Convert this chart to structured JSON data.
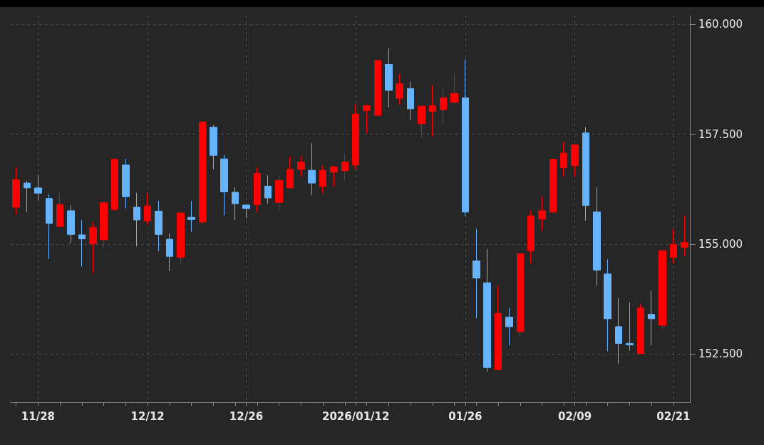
{
  "chart_data": {
    "type": "candlestick",
    "categories": [
      null,
      null,
      "11/28",
      null,
      null,
      null,
      null,
      null,
      null,
      null,
      null,
      null,
      "12/12",
      null,
      null,
      null,
      null,
      null,
      null,
      null,
      null,
      "12/26",
      null,
      null,
      null,
      null,
      null,
      null,
      null,
      null,
      null,
      "2026/01/12",
      null,
      null,
      null,
      null,
      null,
      null,
      null,
      null,
      null,
      "01/26",
      null,
      null,
      null,
      null,
      null,
      null,
      null,
      null,
      null,
      "02/09",
      null,
      null,
      null,
      null,
      null,
      null,
      null,
      null,
      "02/21",
      null
    ],
    "ohlc": [
      [
        155.84,
        156.75,
        155.68,
        156.47
      ],
      [
        156.39,
        156.44,
        155.73,
        156.28
      ],
      [
        156.28,
        156.58,
        155.98,
        156.16
      ],
      [
        156.04,
        156.14,
        154.66,
        155.47
      ],
      [
        155.4,
        156.17,
        155.4,
        155.9
      ],
      [
        155.76,
        155.88,
        155.02,
        155.22
      ],
      [
        155.21,
        155.55,
        154.49,
        155.12
      ],
      [
        155.01,
        155.5,
        154.34,
        155.38
      ],
      [
        155.1,
        155.98,
        154.91,
        155.94
      ],
      [
        155.79,
        156.94,
        155.76,
        156.93
      ],
      [
        156.8,
        156.94,
        155.81,
        156.08
      ],
      [
        155.84,
        156.17,
        154.95,
        155.55
      ],
      [
        155.53,
        156.16,
        155.44,
        155.87
      ],
      [
        155.75,
        155.99,
        154.84,
        155.22
      ],
      [
        155.11,
        155.24,
        154.39,
        154.72
      ],
      [
        154.7,
        155.73,
        154.52,
        155.71
      ],
      [
        155.61,
        155.98,
        155.28,
        155.56
      ],
      [
        155.5,
        157.79,
        155.43,
        157.78
      ],
      [
        157.66,
        157.71,
        156.7,
        157.02
      ],
      [
        156.94,
        157.03,
        155.65,
        156.19
      ],
      [
        156.18,
        156.3,
        155.55,
        155.92
      ],
      [
        155.89,
        155.9,
        155.59,
        155.81
      ],
      [
        155.9,
        156.75,
        155.73,
        156.61
      ],
      [
        156.32,
        156.57,
        155.92,
        156.05
      ],
      [
        155.95,
        156.56,
        155.75,
        156.45
      ],
      [
        156.28,
        157.0,
        156.28,
        156.7
      ],
      [
        156.7,
        157.0,
        156.53,
        156.87
      ],
      [
        156.68,
        157.3,
        156.12,
        156.39
      ],
      [
        156.31,
        156.8,
        156.16,
        156.68
      ],
      [
        156.64,
        156.78,
        156.31,
        156.76
      ],
      [
        156.67,
        157.07,
        156.46,
        156.87
      ],
      [
        156.8,
        158.18,
        156.7,
        157.96
      ],
      [
        158.04,
        158.18,
        157.52,
        158.15
      ],
      [
        157.93,
        159.18,
        157.93,
        159.18
      ],
      [
        159.09,
        159.46,
        158.11,
        158.5
      ],
      [
        158.32,
        158.87,
        158.18,
        158.65
      ],
      [
        158.54,
        158.7,
        157.82,
        158.08
      ],
      [
        157.74,
        158.14,
        157.42,
        158.14
      ],
      [
        158.02,
        158.61,
        157.45,
        158.15
      ],
      [
        158.06,
        158.54,
        157.74,
        158.33
      ],
      [
        158.23,
        158.89,
        158.18,
        158.43
      ],
      [
        158.33,
        159.21,
        155.64,
        155.73
      ],
      [
        154.62,
        155.35,
        153.31,
        154.23
      ],
      [
        154.12,
        154.89,
        152.1,
        152.19
      ],
      [
        152.14,
        154.05,
        152.14,
        153.42
      ],
      [
        153.34,
        153.55,
        152.69,
        153.12
      ],
      [
        153.01,
        154.78,
        152.89,
        154.78
      ],
      [
        154.85,
        155.77,
        154.56,
        155.64
      ],
      [
        155.57,
        156.08,
        155.31,
        155.76
      ],
      [
        155.73,
        156.93,
        155.7,
        156.93
      ],
      [
        156.74,
        157.33,
        156.54,
        157.07
      ],
      [
        156.79,
        157.26,
        156.54,
        157.26
      ],
      [
        157.53,
        157.66,
        155.53,
        155.88
      ],
      [
        155.73,
        156.3,
        154.05,
        154.41
      ],
      [
        154.32,
        154.65,
        152.56,
        153.3
      ],
      [
        153.12,
        153.77,
        152.28,
        152.74
      ],
      [
        152.74,
        153.67,
        152.57,
        152.71
      ],
      [
        152.51,
        153.64,
        152.51,
        153.55
      ],
      [
        153.4,
        153.93,
        152.69,
        153.3
      ],
      [
        153.15,
        154.85,
        153.06,
        154.85
      ],
      [
        154.7,
        155.35,
        154.56,
        154.99
      ],
      [
        154.93,
        155.64,
        154.72,
        155.04
      ]
    ],
    "colors": [
      "#ff0000",
      "#66b3ff",
      "#66b3ff",
      "#66b3ff",
      "#ff0000",
      "#66b3ff",
      "#66b3ff",
      "#ff0000",
      "#ff0000",
      "#ff0000",
      "#66b3ff",
      "#66b3ff",
      "#ff0000",
      "#66b3ff",
      "#66b3ff",
      "#ff0000",
      "#66b3ff",
      "#ff0000",
      "#66b3ff",
      "#66b3ff",
      "#66b3ff",
      "#66b3ff",
      "#ff0000",
      "#66b3ff",
      "#ff0000",
      "#ff0000",
      "#ff0000",
      "#66b3ff",
      "#ff0000",
      "#ff0000",
      "#ff0000",
      "#ff0000",
      "#ff0000",
      "#ff0000",
      "#66b3ff",
      "#ff0000",
      "#66b3ff",
      "#ff0000",
      "#ff0000",
      "#ff0000",
      "#ff0000",
      "#66b3ff",
      "#66b3ff",
      "#66b3ff",
      "#ff0000",
      "#66b3ff",
      "#ff0000",
      "#ff0000",
      "#ff0000",
      "#ff0000",
      "#ff0000",
      "#ff0000",
      "#66b3ff",
      "#66b3ff",
      "#66b3ff",
      "#66b3ff",
      "#66b3ff",
      "#ff0000",
      "#66b3ff",
      "#ff0000",
      "#ff0000",
      "#ff0000"
    ],
    "ylim": [
      151.4,
      160.2
    ],
    "yticks": [
      {
        "value": 152.5,
        "label": "152.500"
      },
      {
        "value": 155,
        "label": "155.000"
      },
      {
        "value": 157.5,
        "label": "157.500"
      },
      {
        "value": 160,
        "label": "160.000"
      }
    ],
    "grid": true
  }
}
